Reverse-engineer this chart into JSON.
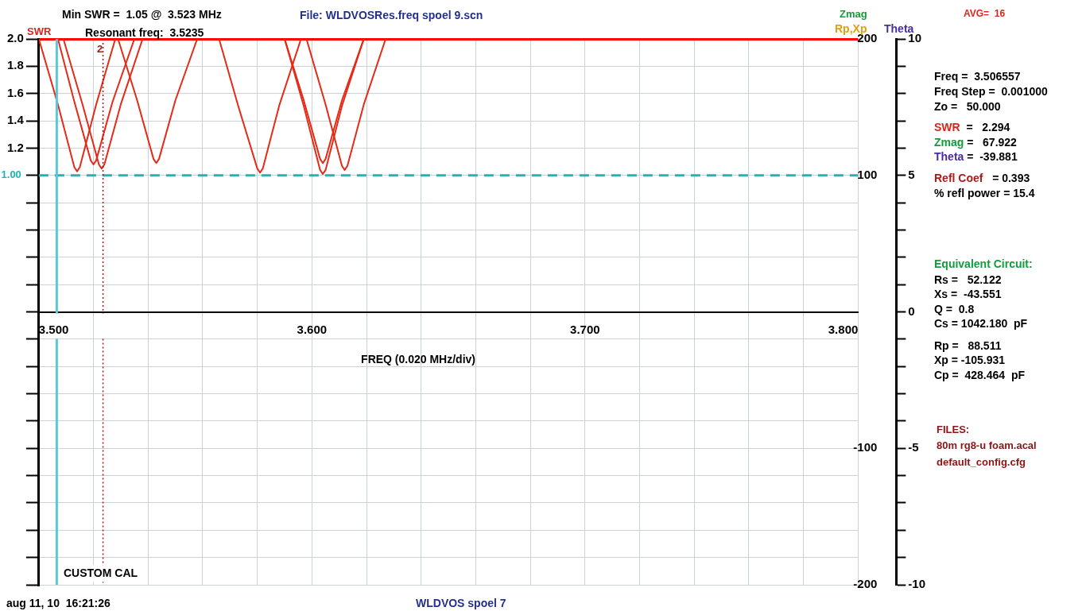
{
  "chart_data": {
    "type": "line",
    "xlabel": "FREQ (0.020 MHz/div)",
    "ylabel": "SWR",
    "y2label": "Zmag",
    "y3label": "Theta",
    "xlim": [
      3.5,
      3.8
    ],
    "xticks": [
      {
        "value": 3.5,
        "label": "3.500"
      },
      {
        "value": 3.52,
        "label": null
      },
      {
        "value": 3.54,
        "label": null
      },
      {
        "value": 3.56,
        "label": null
      },
      {
        "value": 3.58,
        "label": null
      },
      {
        "value": 3.6,
        "label": "3.600"
      },
      {
        "value": 3.62,
        "label": null
      },
      {
        "value": 3.64,
        "label": null
      },
      {
        "value": 3.66,
        "label": null
      },
      {
        "value": 3.68,
        "label": null
      },
      {
        "value": 3.7,
        "label": "3.700"
      },
      {
        "value": 3.72,
        "label": null
      },
      {
        "value": 3.74,
        "label": null
      },
      {
        "value": 3.76,
        "label": null
      },
      {
        "value": 3.78,
        "label": null
      },
      {
        "value": 3.8,
        "label": "3.800"
      }
    ],
    "ylim": [
      -2,
      2
    ],
    "yticks": [
      {
        "value": 2,
        "label": "2.0"
      },
      1.8,
      1.6,
      1.4,
      1.2,
      {
        "value": 1,
        "label": null
      },
      {
        "value": 0.8,
        "label": null
      },
      {
        "value": 0.6,
        "label": null
      },
      {
        "value": 0.4,
        "label": null
      },
      {
        "value": 0.2,
        "label": null
      },
      {
        "value": 0,
        "label": null
      },
      {
        "value": -0.2,
        "label": null
      },
      {
        "value": -0.4,
        "label": null
      },
      {
        "value": -0.6,
        "label": null
      },
      {
        "value": -0.8,
        "label": null
      },
      {
        "value": -1,
        "label": null
      },
      {
        "value": -1.2,
        "label": null
      },
      {
        "value": -1.4,
        "label": null
      },
      {
        "value": -1.6,
        "label": null
      },
      {
        "value": -1.8,
        "label": null
      },
      {
        "value": -2,
        "label": null
      }
    ],
    "y2lim": [
      -200,
      200
    ],
    "y2ticks": [
      200,
      100,
      -100,
      -200
    ],
    "y3lim": [
      -10,
      10
    ],
    "y3ticks": [
      10,
      {
        "value": 9,
        "label": null
      },
      {
        "value": 8,
        "label": null
      },
      {
        "value": 7,
        "label": null
      },
      {
        "value": 6,
        "label": null
      },
      5,
      {
        "value": 4,
        "label": null
      },
      {
        "value": 3,
        "label": null
      },
      {
        "value": 2,
        "label": null
      },
      {
        "value": 1,
        "label": null
      },
      0,
      {
        "value": -1,
        "label": null
      },
      {
        "value": -2,
        "label": null
      },
      {
        "value": -3,
        "label": null
      },
      {
        "value": -4,
        "label": null
      },
      -5,
      {
        "value": -6,
        "label": null
      },
      {
        "value": -7,
        "label": null
      },
      {
        "value": -8,
        "label": null
      },
      {
        "value": -9,
        "label": null
      },
      -10
    ],
    "series": [
      {
        "color": "#e52a17",
        "x": [
          3.5,
          3.507,
          3.513,
          3.514,
          3.515,
          3.521,
          3.528
        ],
        "values": [
          2.0,
          1.52,
          1.06,
          1.03,
          1.06,
          1.52,
          2.0
        ]
      },
      {
        "color": "#e52a17",
        "x": [
          3.507,
          3.513,
          3.519,
          3.52,
          3.521,
          3.527,
          3.535
        ],
        "values": [
          2.0,
          1.54,
          1.11,
          1.08,
          1.11,
          1.54,
          2.0
        ]
      },
      {
        "color": "#e52a17",
        "x": [
          3.509,
          3.516,
          3.522,
          3.523,
          3.524,
          3.53,
          3.538
        ],
        "values": [
          2.0,
          1.52,
          1.08,
          1.05,
          1.08,
          1.52,
          2.0
        ]
      },
      {
        "color": "#e52a17",
        "x": [
          3.529,
          3.536,
          3.542,
          3.543,
          3.544,
          3.55,
          3.558
        ],
        "values": [
          2.0,
          1.55,
          1.12,
          1.09,
          1.12,
          1.55,
          2.0
        ]
      },
      {
        "color": "#e52a17",
        "x": [
          3.566,
          3.573,
          3.58,
          3.581,
          3.582,
          3.588,
          3.596
        ],
        "values": [
          2.0,
          1.51,
          1.05,
          1.02,
          1.05,
          1.51,
          2.0
        ]
      },
      {
        "color": "#e52a17",
        "x": [
          3.59,
          3.597,
          3.603,
          3.604,
          3.605,
          3.611,
          3.619
        ],
        "values": [
          2.0,
          1.55,
          1.12,
          1.09,
          1.12,
          1.55,
          2.0
        ]
      },
      {
        "color": "#e52a17",
        "x": [
          3.59,
          3.597,
          3.603,
          3.604,
          3.605,
          3.611,
          3.619
        ],
        "values": [
          2.0,
          1.51,
          1.04,
          1.01,
          1.04,
          1.51,
          2.0
        ]
      },
      {
        "color": "#e52a17",
        "x": [
          3.598,
          3.605,
          3.611,
          3.612,
          3.613,
          3.619,
          3.627
        ],
        "values": [
          2.0,
          1.52,
          1.07,
          1.04,
          1.07,
          1.52,
          2.0
        ]
      }
    ],
    "ref_lines": [
      {
        "axis": "y",
        "value": 1.0,
        "label": "1.00",
        "color": "#1fb5b0",
        "line_style": "dashed"
      },
      {
        "axis": "x",
        "value": 3.506557,
        "label": null,
        "color": "#5cc8d4",
        "line_style": "solid"
      },
      {
        "axis": "x",
        "value": 3.5235,
        "color": "#a01818",
        "line_style": "dotted"
      }
    ],
    "grid": true,
    "legend": false,
    "marker": "none",
    "line_style": "solid",
    "annotations": [
      "Min SWR =  1.05 @  3.523 MHz",
      "Resonant freq:  3.5235",
      "File: WLDVOSRes.freq spoel 9.scn",
      "AVG=  16",
      "Rp,Xp",
      "Freq =  3.506557",
      "Freq Step =  0.001000",
      "Zo =   50.000",
      "SWR  =   2.294",
      "Zmag =   67.922",
      "Theta =  -39.881",
      "Refl Coef   = 0.393",
      "% refl power = 15.4",
      "Equivalent Circuit:",
      "Rs =   52.122",
      "Xs =  -43.551",
      "Q =  0.8",
      "Cs = 1042.180  pF",
      "Rp =   88.511",
      "Xp = -105.931",
      "Cp =  428.464  pF",
      "FILES:",
      "80m rg8-u foam.acal",
      "default_config.cfg",
      "CUSTOM CAL",
      "aug 11, 10  16:21:26",
      "WLDVOS spoel 7",
      {
        "text": "2",
        "x": 3.5235,
        "y": 1.92
      }
    ]
  }
}
